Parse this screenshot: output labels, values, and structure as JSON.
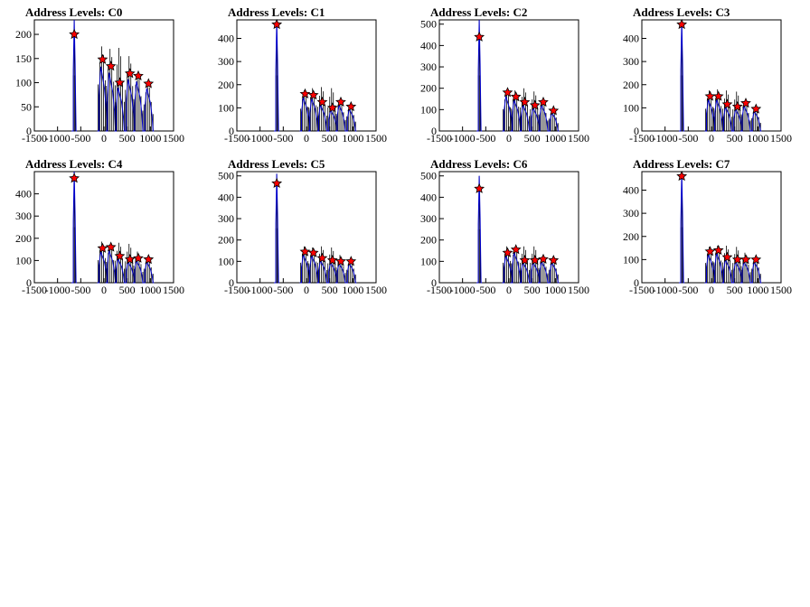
{
  "chart_data": [
    {
      "type": "histogram",
      "title": "Address Levels: C0",
      "xlim": [
        -1500,
        1500
      ],
      "ylim": [
        0,
        230
      ],
      "xticks": [
        "-1500",
        "-1000",
        "-500",
        "0",
        "500",
        "1000",
        "1500"
      ],
      "yticks": [
        "0",
        "50",
        "100",
        "150",
        "200"
      ],
      "ytick_values": [
        0,
        50,
        100,
        150,
        200
      ],
      "peaks": [
        {
          "x": -640,
          "y": 200
        },
        {
          "x": -30,
          "y": 148
        },
        {
          "x": 150,
          "y": 134
        },
        {
          "x": 340,
          "y": 100
        },
        {
          "x": 560,
          "y": 119
        },
        {
          "x": 740,
          "y": 114
        },
        {
          "x": 960,
          "y": 98
        }
      ],
      "max_bins": [
        {
          "x": -640,
          "y": 230
        },
        {
          "x": -30,
          "y": 175
        },
        {
          "x": 150,
          "y": 170
        },
        {
          "x": 340,
          "y": 172
        },
        {
          "x": 560,
          "y": 155
        },
        {
          "x": 740,
          "y": 120
        },
        {
          "x": 960,
          "y": 100
        }
      ]
    },
    {
      "type": "histogram",
      "title": "Address Levels: C1",
      "xlim": [
        -1500,
        1500
      ],
      "ylim": [
        0,
        480
      ],
      "xticks": [
        "-1500",
        "-1000",
        "-500",
        "0",
        "500",
        "1000",
        "1500"
      ],
      "yticks": [
        "0",
        "100",
        "200",
        "300",
        "400"
      ],
      "ytick_values": [
        0,
        100,
        200,
        300,
        400
      ],
      "peaks": [
        {
          "x": -640,
          "y": 460
        },
        {
          "x": -30,
          "y": 160
        },
        {
          "x": 150,
          "y": 155
        },
        {
          "x": 340,
          "y": 125
        },
        {
          "x": 560,
          "y": 100
        },
        {
          "x": 740,
          "y": 125
        },
        {
          "x": 960,
          "y": 105
        }
      ],
      "max_bins": [
        {
          "x": -640,
          "y": 480
        },
        {
          "x": -30,
          "y": 175
        },
        {
          "x": 150,
          "y": 185
        },
        {
          "x": 340,
          "y": 190
        },
        {
          "x": 560,
          "y": 185
        },
        {
          "x": 740,
          "y": 135
        },
        {
          "x": 960,
          "y": 115
        }
      ]
    },
    {
      "type": "histogram",
      "title": "Address Levels: C2",
      "xlim": [
        -1500,
        1500
      ],
      "ylim": [
        0,
        520
      ],
      "xticks": [
        "-1500",
        "-1000",
        "-500",
        "0",
        "500",
        "1000",
        "1500"
      ],
      "yticks": [
        "0",
        "100",
        "200",
        "300",
        "400",
        "500"
      ],
      "ytick_values": [
        0,
        100,
        200,
        300,
        400,
        500
      ],
      "peaks": [
        {
          "x": -640,
          "y": 440
        },
        {
          "x": -30,
          "y": 180
        },
        {
          "x": 150,
          "y": 160
        },
        {
          "x": 340,
          "y": 135
        },
        {
          "x": 560,
          "y": 120
        },
        {
          "x": 740,
          "y": 135
        },
        {
          "x": 960,
          "y": 95
        }
      ],
      "max_bins": [
        {
          "x": -640,
          "y": 520
        },
        {
          "x": -30,
          "y": 185
        },
        {
          "x": 150,
          "y": 190
        },
        {
          "x": 340,
          "y": 200
        },
        {
          "x": 560,
          "y": 185
        },
        {
          "x": 740,
          "y": 140
        },
        {
          "x": 960,
          "y": 105
        }
      ]
    },
    {
      "type": "histogram",
      "title": "Address Levels: C3",
      "xlim": [
        -1500,
        1500
      ],
      "ylim": [
        0,
        480
      ],
      "xticks": [
        "-1500",
        "-1000",
        "-500",
        "0",
        "500",
        "1000",
        "1500"
      ],
      "yticks": [
        "0",
        "100",
        "200",
        "300",
        "400"
      ],
      "ytick_values": [
        0,
        100,
        200,
        300,
        400
      ],
      "peaks": [
        {
          "x": -640,
          "y": 460
        },
        {
          "x": -30,
          "y": 150
        },
        {
          "x": 150,
          "y": 150
        },
        {
          "x": 340,
          "y": 115
        },
        {
          "x": 560,
          "y": 105
        },
        {
          "x": 740,
          "y": 120
        },
        {
          "x": 960,
          "y": 95
        }
      ],
      "max_bins": [
        {
          "x": -640,
          "y": 480
        },
        {
          "x": -30,
          "y": 175
        },
        {
          "x": 150,
          "y": 180
        },
        {
          "x": 340,
          "y": 175
        },
        {
          "x": 560,
          "y": 170
        },
        {
          "x": 740,
          "y": 130
        },
        {
          "x": 960,
          "y": 100
        }
      ]
    },
    {
      "type": "histogram",
      "title": "Address Levels: C4",
      "xlim": [
        -1500,
        1500
      ],
      "ylim": [
        0,
        500
      ],
      "xticks": [
        "-1500",
        "-1000",
        "-500",
        "0",
        "500",
        "1000",
        "1500"
      ],
      "yticks": [
        "0",
        "100",
        "200",
        "300",
        "400"
      ],
      "ytick_values": [
        0,
        100,
        200,
        300,
        400
      ],
      "peaks": [
        {
          "x": -640,
          "y": 470
        },
        {
          "x": -30,
          "y": 155
        },
        {
          "x": 150,
          "y": 160
        },
        {
          "x": 340,
          "y": 120
        },
        {
          "x": 560,
          "y": 105
        },
        {
          "x": 740,
          "y": 110
        },
        {
          "x": 960,
          "y": 105
        }
      ],
      "max_bins": [
        {
          "x": -640,
          "y": 500
        },
        {
          "x": -30,
          "y": 185
        },
        {
          "x": 150,
          "y": 170
        },
        {
          "x": 340,
          "y": 180
        },
        {
          "x": 560,
          "y": 175
        },
        {
          "x": 740,
          "y": 140
        },
        {
          "x": 960,
          "y": 115
        }
      ]
    },
    {
      "type": "histogram",
      "title": "Address Levels: C5",
      "xlim": [
        -1500,
        1500
      ],
      "ylim": [
        0,
        520
      ],
      "xticks": [
        "-1500",
        "-1000",
        "-500",
        "0",
        "500",
        "1000",
        "1500"
      ],
      "yticks": [
        "0",
        "100",
        "200",
        "300",
        "400",
        "500"
      ],
      "ytick_values": [
        0,
        100,
        200,
        300,
        400,
        500
      ],
      "peaks": [
        {
          "x": -640,
          "y": 465
        },
        {
          "x": -30,
          "y": 145
        },
        {
          "x": 150,
          "y": 140
        },
        {
          "x": 340,
          "y": 115
        },
        {
          "x": 560,
          "y": 105
        },
        {
          "x": 740,
          "y": 100
        },
        {
          "x": 960,
          "y": 100
        }
      ],
      "max_bins": [
        {
          "x": -640,
          "y": 510
        },
        {
          "x": -30,
          "y": 170
        },
        {
          "x": 150,
          "y": 165
        },
        {
          "x": 340,
          "y": 170
        },
        {
          "x": 560,
          "y": 165
        },
        {
          "x": 740,
          "y": 130
        },
        {
          "x": 960,
          "y": 110
        }
      ]
    },
    {
      "type": "histogram",
      "title": "Address Levels: C6",
      "xlim": [
        -1500,
        1500
      ],
      "ylim": [
        0,
        520
      ],
      "xticks": [
        "-1500",
        "-1000",
        "-500",
        "0",
        "500",
        "1000",
        "1500"
      ],
      "yticks": [
        "0",
        "100",
        "200",
        "300",
        "400",
        "500"
      ],
      "ytick_values": [
        0,
        100,
        200,
        300,
        400,
        500
      ],
      "peaks": [
        {
          "x": -640,
          "y": 440
        },
        {
          "x": -30,
          "y": 140
        },
        {
          "x": 150,
          "y": 155
        },
        {
          "x": 340,
          "y": 105
        },
        {
          "x": 560,
          "y": 105
        },
        {
          "x": 740,
          "y": 110
        },
        {
          "x": 960,
          "y": 105
        }
      ],
      "max_bins": [
        {
          "x": -640,
          "y": 500
        },
        {
          "x": -30,
          "y": 170
        },
        {
          "x": 150,
          "y": 165
        },
        {
          "x": 340,
          "y": 170
        },
        {
          "x": 560,
          "y": 170
        },
        {
          "x": 740,
          "y": 125
        },
        {
          "x": 960,
          "y": 110
        }
      ]
    },
    {
      "type": "histogram",
      "title": "Address Levels: C7",
      "xlim": [
        -1500,
        1500
      ],
      "ylim": [
        0,
        480
      ],
      "xticks": [
        "-1500",
        "-1000",
        "-500",
        "0",
        "500",
        "1000",
        "1500"
      ],
      "yticks": [
        "0",
        "100",
        "200",
        "300",
        "400"
      ],
      "ytick_values": [
        0,
        100,
        200,
        300,
        400
      ],
      "peaks": [
        {
          "x": -640,
          "y": 460
        },
        {
          "x": -30,
          "y": 135
        },
        {
          "x": 150,
          "y": 140
        },
        {
          "x": 340,
          "y": 110
        },
        {
          "x": 560,
          "y": 100
        },
        {
          "x": 740,
          "y": 100
        },
        {
          "x": 960,
          "y": 100
        }
      ],
      "max_bins": [
        {
          "x": -640,
          "y": 480
        },
        {
          "x": -30,
          "y": 155
        },
        {
          "x": 150,
          "y": 160
        },
        {
          "x": 340,
          "y": 160
        },
        {
          "x": 560,
          "y": 155
        },
        {
          "x": 740,
          "y": 130
        },
        {
          "x": 960,
          "y": 110
        }
      ]
    }
  ],
  "colors": {
    "background": "#ffffff",
    "axis": "#000000",
    "histogram_line": "#0000cc",
    "peak_bars": "#000000",
    "marker_fill": "#ff0000",
    "marker_stroke": "#000000"
  }
}
